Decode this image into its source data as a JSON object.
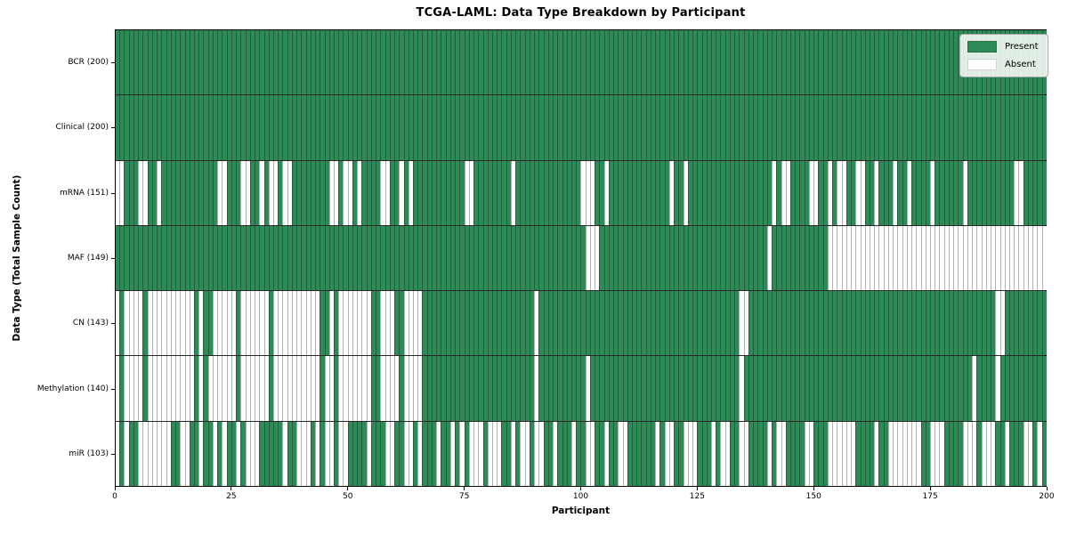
{
  "title": "TCGA-LAML: Data Type Breakdown by Participant",
  "axes": {
    "x_label": "Participant",
    "y_label": "Data Type (Total Sample Count)",
    "x_ticks": [
      0,
      25,
      50,
      75,
      100,
      125,
      150,
      175,
      200
    ],
    "x_min": 0,
    "x_max": 200
  },
  "legend": {
    "position": "upper right",
    "items": [
      {
        "label": "Present",
        "color": "#2e8b57"
      },
      {
        "label": "Absent",
        "color": "#ffffff"
      }
    ]
  },
  "chart_data": {
    "type": "heatmap",
    "title": "TCGA-LAML: Data Type Breakdown by Participant",
    "xlabel": "Participant",
    "ylabel": "Data Type (Total Sample Count)",
    "x_range": [
      0,
      200
    ],
    "n_participants": 200,
    "grid": "per-cell edges plus black row separators",
    "legend_position": "upper right",
    "colors": {
      "present": "#2e8b57",
      "absent": "#ffffff"
    },
    "encoding": "pattern strings: 1 = Present, 0 = Absent, index = participant 0..199 (spaces are cosmetic)",
    "rows": [
      {
        "label": "BCR",
        "total": 200,
        "display": "BCR (200)",
        "pattern": "1111111111 1111111111 1111111111 1111111111 1111111111 1111111111 1111111111 1111111111 1111111111 1111111111 1111111111 1111111111 1111111111 1111111111 1111111111 1111111111 1111111111 1111111111 1111111111 1111111111"
      },
      {
        "label": "Clinical",
        "total": 200,
        "display": "Clinical (200)",
        "pattern": "1111111111 1111111111 1111111111 1111111111 1111111111 1111111111 1111111111 1111111111 1111111111 1111111111 1111111111 1111111111 1111111111 1111111111 1111111111 1111111111 1111111111 1111111111 1111111111 1111111111"
      },
      {
        "label": "mRNA",
        "total": 151,
        "display": "mRNA (151)",
        "pattern": "0011100110 1111111111 1100111001 1010010011 1111110010 0101111001 1010111111 1111100111 1111101111 1111111111 0001101111 1111111110 1101111111 1111111111 1010011110 0110100110 0110111011 0111101111 1101111111 1110011111"
      },
      {
        "label": "MAF",
        "total": 149,
        "display": "MAF (149)",
        "pattern": "1111111111 1111111111 1111111111 1111111111 1111111111 1111111111 1111111111 1111111111 1111111111 1111111111 1000111111 1111111111 1111111111 1111111111 0111111111 1110000000 0000000000 0000000000 0000000000 0000000000"
      },
      {
        "label": "CN",
        "total": 143,
        "display": "CN (143)",
        "pattern": "0100001000 0000000101 1000001000 0001000000 0000110100 0000011000 1100001111 1111111111 1111111111 0111111111 1111111111 1111111111 1111111111 1111001111 1111111111 1111111111 1111111111 1111111111 1111111110 0111111111"
      },
      {
        "label": "Methylation",
        "total": 140,
        "display": "Methylation (140)",
        "pattern": "0100001000 0000000101 0000001000 0001000000 0000100100 0000011000 0100001111 1111111111 1111111111 0111111111 1011111111 1111111111 1111111111 1111011111 1111111111 1111111111 1111111111 1111111111 1111011110 1111111111"
      },
      {
        "label": "miR",
        "total": 103,
        "display": "miR (103)",
        "pattern": "0101100000 0011001101 1010110100 0111110110 0010100100 1111011100 1100101110 1101010001 0001101001 0011011101 1001101100 1111110100 1100011101 0011001111 0100111100 1110000001 1110110000 0001100011 1100010001 1011100101"
      }
    ]
  }
}
